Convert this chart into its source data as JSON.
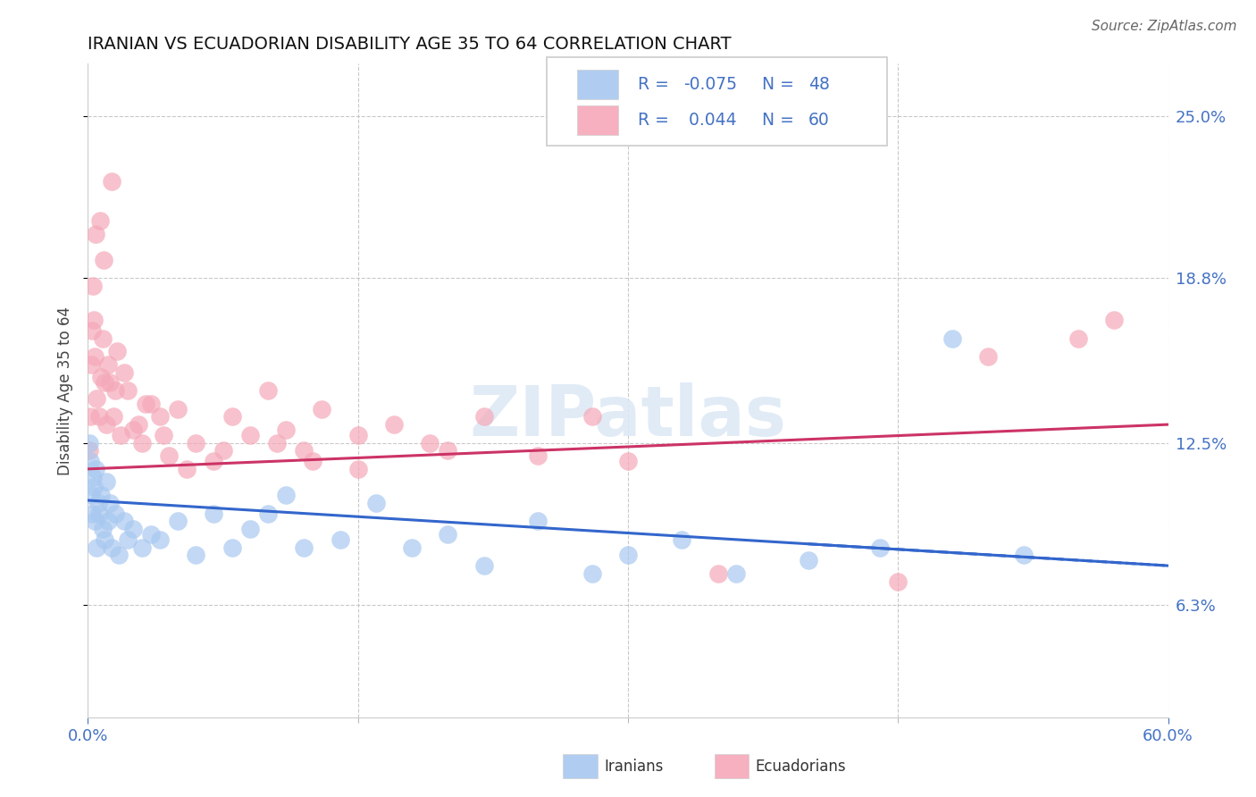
{
  "title": "IRANIAN VS ECUADORIAN DISABILITY AGE 35 TO 64 CORRELATION CHART",
  "source": "Source: ZipAtlas.com",
  "ylabel_label": "Disability Age 35 to 64",
  "ylabel_values": [
    6.3,
    12.5,
    18.8,
    25.0
  ],
  "xlim": [
    0.0,
    60.0
  ],
  "ylim": [
    2.0,
    27.0
  ],
  "watermark": "ZIPatlas",
  "iranian_color": "#a8c8f0",
  "ecuadorian_color": "#f5a8b8",
  "trendline_iranian_color": "#3366cc",
  "trendline_ecuadorian_color": "#cc3366",
  "legend_text_color": "#4472c4",
  "legend_r_color": "#4472c4",
  "legend_n_color": "#4472c4",
  "iranian_n": 48,
  "ecuadorian_n": 60,
  "iranian_x": [
    0.1,
    0.15,
    0.2,
    0.25,
    0.3,
    0.35,
    0.4,
    0.45,
    0.5,
    0.55,
    0.6,
    0.7,
    0.8,
    0.9,
    1.0,
    1.1,
    1.2,
    1.3,
    1.5,
    1.7,
    2.0,
    2.2,
    2.5,
    3.0,
    3.5,
    4.0,
    5.0,
    6.0,
    7.0,
    8.0,
    9.0,
    10.0,
    11.0,
    12.0,
    14.0,
    16.0,
    18.0,
    20.0,
    22.0,
    25.0,
    28.0,
    30.0,
    33.0,
    36.0,
    40.0,
    44.0,
    48.0,
    52.0
  ],
  "iranian_y": [
    12.5,
    11.8,
    10.5,
    9.8,
    11.2,
    10.8,
    9.5,
    11.5,
    8.5,
    10.2,
    9.8,
    10.5,
    9.2,
    8.8,
    11.0,
    9.5,
    10.2,
    8.5,
    9.8,
    8.2,
    9.5,
    8.8,
    9.2,
    8.5,
    9.0,
    8.8,
    9.5,
    8.2,
    9.8,
    8.5,
    9.2,
    9.8,
    10.5,
    8.5,
    8.8,
    10.2,
    8.5,
    9.0,
    7.8,
    9.5,
    7.5,
    8.2,
    8.8,
    7.5,
    8.0,
    8.5,
    16.5,
    8.2
  ],
  "ecuadorian_x": [
    0.1,
    0.15,
    0.2,
    0.25,
    0.3,
    0.35,
    0.4,
    0.5,
    0.6,
    0.7,
    0.8,
    0.9,
    1.0,
    1.1,
    1.2,
    1.4,
    1.6,
    1.8,
    2.0,
    2.2,
    2.5,
    3.0,
    3.5,
    4.0,
    4.5,
    5.0,
    6.0,
    7.0,
    8.0,
    9.0,
    10.0,
    11.0,
    12.0,
    13.0,
    15.0,
    17.0,
    19.0,
    22.0,
    25.0,
    28.0,
    15.0,
    20.0,
    30.0,
    35.0,
    45.0,
    50.0,
    55.0,
    57.0,
    10.5,
    12.5,
    1.5,
    2.8,
    4.2,
    5.5,
    7.5,
    0.45,
    0.65,
    0.85,
    1.3,
    3.2
  ],
  "ecuadorian_y": [
    12.2,
    13.5,
    15.5,
    16.8,
    18.5,
    17.2,
    15.8,
    14.2,
    13.5,
    15.0,
    16.5,
    14.8,
    13.2,
    15.5,
    14.8,
    13.5,
    16.0,
    12.8,
    15.2,
    14.5,
    13.0,
    12.5,
    14.0,
    13.5,
    12.0,
    13.8,
    12.5,
    11.8,
    13.5,
    12.8,
    14.5,
    13.0,
    12.2,
    13.8,
    12.8,
    13.2,
    12.5,
    13.5,
    12.0,
    13.5,
    11.5,
    12.2,
    11.8,
    7.5,
    7.2,
    15.8,
    16.5,
    17.2,
    12.5,
    11.8,
    14.5,
    13.2,
    12.8,
    11.5,
    12.2,
    20.5,
    21.0,
    19.5,
    22.5,
    14.0
  ]
}
